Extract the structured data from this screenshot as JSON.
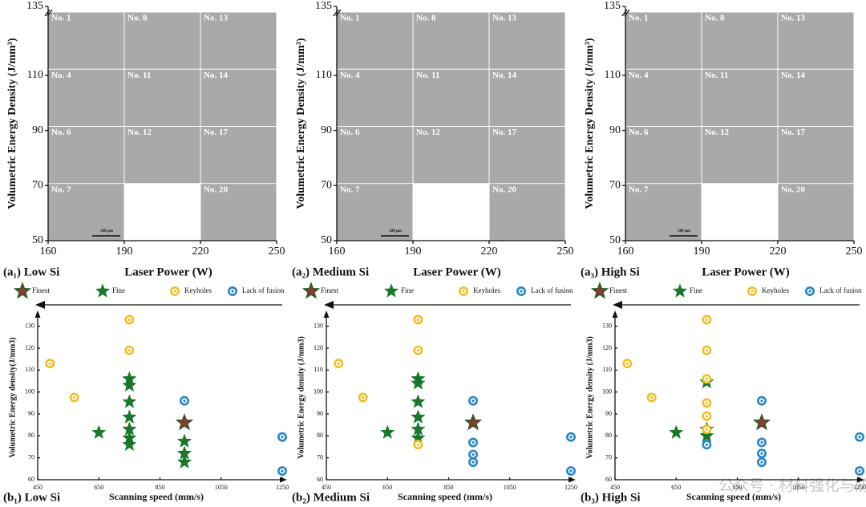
{
  "chart_data": [
    {
      "type": "image-grid",
      "label": "(a₁) Low Si",
      "x_label": "Laser Power (W)",
      "y_label": "Volumetric Energy Density (J/mm³)",
      "xlim": [
        160,
        250
      ],
      "xticks": [
        160,
        190,
        220,
        250
      ],
      "ylim": [
        50,
        135
      ],
      "yticks": [
        50,
        70,
        90,
        110,
        135
      ],
      "scale_bar": "500 μm",
      "rows": [
        [
          "No. 1",
          "No. 8",
          "No. 13"
        ],
        [
          "No. 4",
          "No. 11",
          "No. 14"
        ],
        [
          "No. 6",
          "No. 12",
          "No. 17"
        ],
        [
          "No. 7",
          null,
          "No. 20"
        ]
      ]
    },
    {
      "type": "image-grid",
      "label": "(a₂) Medium Si",
      "x_label": "Laser Power (W)",
      "y_label": "Volumetric Energy Density (J/mm³)",
      "xlim": [
        160,
        250
      ],
      "xticks": [
        160,
        190,
        220,
        250
      ],
      "ylim": [
        50,
        135
      ],
      "yticks": [
        50,
        70,
        90,
        110,
        135
      ],
      "scale_bar": "500 μm",
      "rows": [
        [
          "No. 1",
          "No. 8",
          "No. 13"
        ],
        [
          "No. 4",
          "No. 11",
          "No. 14"
        ],
        [
          "No. 6",
          "No. 12",
          "No. 17"
        ],
        [
          "No. 7",
          null,
          "No. 20"
        ]
      ]
    },
    {
      "type": "image-grid",
      "label": "(a₃) High Si",
      "x_label": "Laser Power (W)",
      "y_label": "Volumetric Energy Density (J/mm³)",
      "xlim": [
        160,
        250
      ],
      "xticks": [
        160,
        190,
        220,
        250
      ],
      "ylim": [
        50,
        135
      ],
      "yticks": [
        50,
        70,
        90,
        110,
        135
      ],
      "scale_bar": "500 μm",
      "rows": [
        [
          "No. 1",
          "No. 8",
          "No. 13"
        ],
        [
          "No. 4",
          "No. 11",
          "No. 14"
        ],
        [
          "No. 6",
          "No. 12",
          "No. 17"
        ],
        [
          "No. 7",
          null,
          "No. 20"
        ]
      ]
    },
    {
      "type": "scatter",
      "label": "(b₁) Low Si",
      "x_label": "Scanning speed (mm/s)",
      "y_label": "Volumetric Energy density(J/mm3)",
      "xlim": [
        450,
        1250
      ],
      "xticks": [
        450,
        650,
        850,
        1050,
        1250
      ],
      "ylim": [
        60,
        135
      ],
      "yticks": [
        60,
        70,
        80,
        90,
        100,
        110,
        120,
        130
      ],
      "series": [
        {
          "name": "Finest",
          "color": "#8a3a2e",
          "x": [
            930
          ],
          "values": [
            86
          ]
        },
        {
          "name": "Fine",
          "color": "#17782a",
          "x": [
            650,
            750,
            750,
            750,
            750,
            750,
            750,
            750,
            930,
            930,
            930
          ],
          "values": [
            81.5,
            106,
            103,
            95.5,
            88.5,
            83,
            79,
            76,
            77.5,
            72,
            68
          ]
        },
        {
          "name": "Keyholes",
          "color": "#f0c02a",
          "x": [
            490,
            570,
            750,
            750
          ],
          "values": [
            113,
            97.5,
            133,
            119
          ]
        },
        {
          "name": "Lack of fusion",
          "color": "#2a88c8",
          "x": [
            930,
            1250,
            1250
          ],
          "values": [
            96,
            79.5,
            64
          ]
        }
      ]
    },
    {
      "type": "scatter",
      "label": "(b₂) Medium Si",
      "x_label": "Scanning speed (mm/s)",
      "y_label": "Volumetric Energy density (J/mm3)",
      "xlim": [
        450,
        1250
      ],
      "xticks": [
        450,
        650,
        850,
        1050,
        1250
      ],
      "ylim": [
        60,
        135
      ],
      "yticks": [
        60,
        70,
        80,
        90,
        100,
        110,
        120,
        130
      ],
      "series": [
        {
          "name": "Finest",
          "color": "#8a3a2e",
          "x": [
            930
          ],
          "values": [
            86
          ]
        },
        {
          "name": "Fine",
          "color": "#17782a",
          "x": [
            650,
            750,
            750,
            750,
            750,
            750,
            750
          ],
          "values": [
            81.5,
            106,
            104,
            95.5,
            88.5,
            83,
            79
          ]
        },
        {
          "name": "Keyholes",
          "color": "#f0c02a",
          "x": [
            490,
            570,
            750,
            750,
            750
          ],
          "values": [
            113,
            97.5,
            133,
            119,
            76
          ]
        },
        {
          "name": "Lack of fusion",
          "color": "#2a88c8",
          "x": [
            930,
            930,
            930,
            930,
            1250,
            1250
          ],
          "values": [
            96,
            77,
            71.5,
            68,
            79.5,
            64
          ]
        }
      ]
    },
    {
      "type": "scatter",
      "label": "(b₃) High Si",
      "x_label": "Scanning speed (mm/s)",
      "y_label": "Volumetric Energy density (J/mm3)",
      "xlim": [
        450,
        1250
      ],
      "xticks": [
        450,
        650,
        850,
        1050,
        1250
      ],
      "ylim": [
        60,
        135
      ],
      "yticks": [
        60,
        70,
        80,
        90,
        100,
        110,
        120,
        130
      ],
      "series": [
        {
          "name": "Finest",
          "color": "#8a3a2e",
          "x": [
            930
          ],
          "values": [
            86
          ]
        },
        {
          "name": "Fine",
          "color": "#17782a",
          "x": [
            650,
            750,
            750,
            750
          ],
          "values": [
            81.5,
            104.5,
            83,
            80
          ]
        },
        {
          "name": "Keyholes",
          "color": "#f0c02a",
          "x": [
            490,
            570,
            750,
            750,
            750,
            750,
            750,
            750
          ],
          "values": [
            113,
            97.5,
            133,
            119,
            106,
            95,
            89,
            83
          ]
        },
        {
          "name": "Lack of fusion",
          "color": "#2a88c8",
          "x": [
            750,
            930,
            930,
            930,
            930,
            1250,
            1250
          ],
          "values": [
            76,
            96,
            77,
            72,
            68,
            79.5,
            64
          ]
        }
      ]
    }
  ],
  "watermark": "公众号 · 材料强化与防护"
}
